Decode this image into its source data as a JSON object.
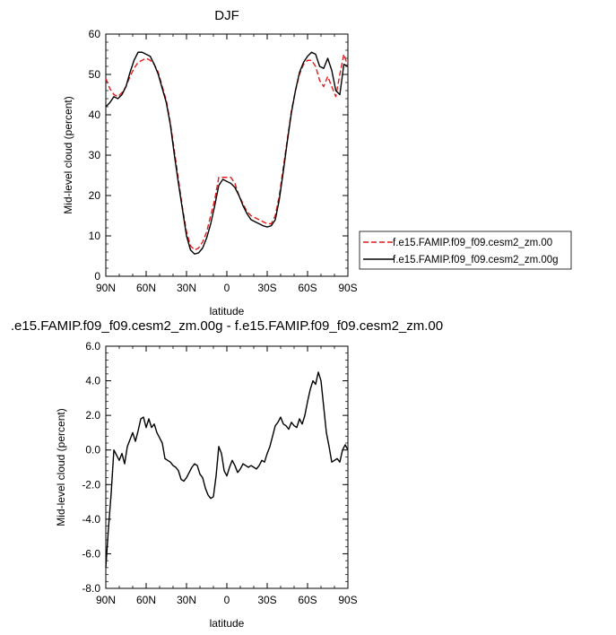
{
  "chart_data": [
    {
      "type": "line",
      "title": "DJF",
      "xlabel": "latitude",
      "ylabel": "Mid-level cloud (percent)",
      "xlim": [
        -90,
        90
      ],
      "ylim": [
        0,
        60
      ],
      "xticks": [
        -90,
        -60,
        -30,
        0,
        30,
        60,
        90
      ],
      "xtick_labels": [
        "90N",
        "60N",
        "30N",
        "0",
        "30S",
        "60S",
        "90S"
      ],
      "yticks": [
        0,
        10,
        20,
        30,
        40,
        50,
        60
      ],
      "ytick_labels": [
        "0",
        "10",
        "20",
        "30",
        "40",
        "50",
        "60"
      ],
      "legend_position": "right",
      "series": [
        {
          "name": "f.e15.FAMIP.f09_f09.cesm2_zm.00",
          "color": "#e41a1c",
          "dash": "dashed",
          "x": [
            -90,
            -87,
            -84,
            -81,
            -78,
            -75,
            -72,
            -69,
            -66,
            -63,
            -60,
            -57,
            -54,
            -51,
            -48,
            -45,
            -42,
            -39,
            -36,
            -33,
            -30,
            -27,
            -24,
            -21,
            -18,
            -15,
            -12,
            -9,
            -6,
            -3,
            0,
            3,
            6,
            9,
            12,
            15,
            18,
            21,
            24,
            27,
            30,
            33,
            36,
            39,
            42,
            45,
            48,
            51,
            54,
            57,
            60,
            63,
            66,
            69,
            72,
            75,
            78,
            81,
            84,
            87,
            90
          ],
          "y": [
            49,
            46.5,
            45,
            44.5,
            45.5,
            47,
            49.5,
            51.5,
            53,
            53.5,
            54,
            53.5,
            52.5,
            50.5,
            47,
            43.5,
            38,
            31,
            24,
            17,
            11,
            7.5,
            6.5,
            7,
            8.5,
            11,
            15,
            19,
            24.5,
            24.5,
            24.5,
            24.5,
            23,
            20,
            18,
            16,
            15,
            14.5,
            14,
            13.5,
            13,
            13,
            15,
            20,
            27,
            34,
            41,
            46,
            50,
            52.5,
            53.5,
            53.5,
            52,
            48.5,
            47,
            49.5,
            47,
            44.5,
            50,
            55,
            52
          ]
        },
        {
          "name": "f.e15.FAMIP.f09_f09.cesm2_zm.00g",
          "color": "#000000",
          "dash": "solid",
          "x": [
            -90,
            -87,
            -84,
            -81,
            -78,
            -75,
            -72,
            -69,
            -66,
            -63,
            -60,
            -57,
            -54,
            -51,
            -48,
            -45,
            -42,
            -39,
            -36,
            -33,
            -30,
            -27,
            -24,
            -21,
            -18,
            -15,
            -12,
            -9,
            -6,
            -3,
            0,
            3,
            6,
            9,
            12,
            15,
            18,
            21,
            24,
            27,
            30,
            33,
            36,
            39,
            42,
            45,
            48,
            51,
            54,
            57,
            60,
            63,
            66,
            69,
            72,
            75,
            78,
            81,
            84,
            87,
            90
          ],
          "y": [
            42,
            43,
            44.5,
            44,
            45,
            47,
            50.5,
            53.5,
            55.5,
            55.5,
            55,
            54.5,
            52.5,
            50,
            46.5,
            43,
            37.5,
            30,
            23,
            16.5,
            10,
            6.5,
            5.5,
            5.8,
            7,
            9.5,
            13,
            17.5,
            22.5,
            24,
            23.5,
            23,
            22,
            20,
            17.5,
            15.5,
            14,
            13.5,
            13,
            12.5,
            12.2,
            12.5,
            14,
            19,
            26,
            33.5,
            40.5,
            46,
            50.5,
            53,
            54.5,
            55.5,
            55,
            52,
            51.5,
            54,
            51,
            46,
            45,
            52.5,
            52
          ]
        }
      ]
    },
    {
      "type": "line",
      "title": ".e15.FAMIP.f09_f09.cesm2_zm.00g - f.e15.FAMIP.f09_f09.cesm2_zm.00",
      "xlabel": "latitude",
      "ylabel": "Mid-level cloud (percent)",
      "xlim": [
        -90,
        90
      ],
      "ylim": [
        -8,
        6
      ],
      "xticks": [
        -90,
        -60,
        -30,
        0,
        30,
        60,
        90
      ],
      "xtick_labels": [
        "90N",
        "60N",
        "30N",
        "0",
        "30S",
        "60S",
        "90S"
      ],
      "yticks": [
        -8,
        -6,
        -4,
        -2,
        0,
        2,
        4,
        6
      ],
      "ytick_labels": [
        "-8.0",
        "-6.0",
        "-4.0",
        "-2.0",
        "0.0",
        "2.0",
        "4.0",
        "6.0"
      ],
      "series": [
        {
          "color": "#000000",
          "dash": "solid",
          "x": [
            -90,
            -88,
            -86,
            -84,
            -82,
            -80,
            -78,
            -76,
            -74,
            -72,
            -70,
            -68,
            -66,
            -64,
            -62,
            -60,
            -58,
            -56,
            -54,
            -52,
            -50,
            -48,
            -46,
            -44,
            -42,
            -40,
            -38,
            -36,
            -34,
            -32,
            -30,
            -28,
            -26,
            -24,
            -22,
            -20,
            -18,
            -16,
            -14,
            -12,
            -10,
            -8,
            -6,
            -4,
            -2,
            0,
            2,
            4,
            6,
            8,
            10,
            12,
            14,
            16,
            18,
            20,
            22,
            24,
            26,
            28,
            30,
            32,
            34,
            36,
            38,
            40,
            42,
            44,
            46,
            48,
            50,
            52,
            54,
            56,
            58,
            60,
            62,
            64,
            66,
            68,
            70,
            72,
            74,
            76,
            78,
            80,
            82,
            84,
            86,
            88,
            90
          ],
          "y": [
            -6.8,
            -4.5,
            -2.5,
            0,
            -0.3,
            -0.6,
            -0.2,
            -0.8,
            0.2,
            0.6,
            1.0,
            0.5,
            1.1,
            1.8,
            1.9,
            1.3,
            1.8,
            1.3,
            1.5,
            1.0,
            0.7,
            0.4,
            -0.5,
            -0.6,
            -0.7,
            -0.9,
            -1.0,
            -1.2,
            -1.7,
            -1.8,
            -1.6,
            -1.3,
            -1.0,
            -0.8,
            -0.9,
            -1.4,
            -1.6,
            -2.2,
            -2.6,
            -2.8,
            -2.7,
            -1.5,
            0.2,
            -0.2,
            -1.2,
            -1.5,
            -1.0,
            -0.6,
            -0.9,
            -1.3,
            -1.1,
            -0.8,
            -0.9,
            -1.0,
            -0.9,
            -1.0,
            -1.1,
            -0.9,
            -0.6,
            -0.7,
            -0.2,
            0.2,
            0.8,
            1.4,
            1.6,
            1.9,
            1.5,
            1.4,
            1.2,
            1.6,
            1.4,
            1.3,
            1.8,
            1.5,
            2.0,
            2.8,
            3.5,
            4.0,
            3.8,
            4.5,
            4.0,
            2.5,
            1.0,
            0.2,
            -0.7,
            -0.6,
            -0.5,
            -0.7,
            0,
            0.3,
            0
          ]
        }
      ]
    }
  ]
}
